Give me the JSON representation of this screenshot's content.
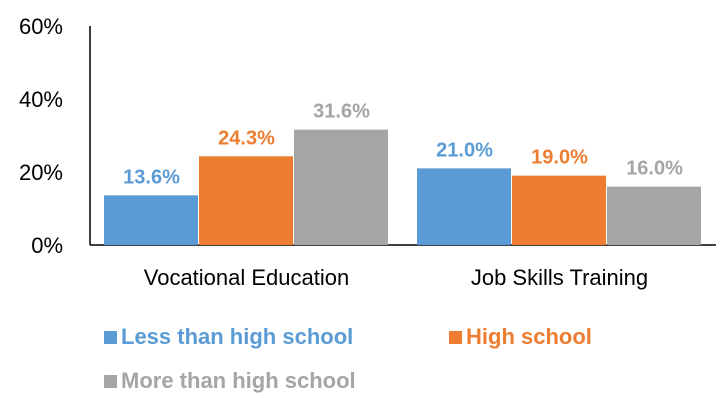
{
  "chart_data": {
    "type": "bar",
    "title": "",
    "xlabel": "",
    "ylabel": "",
    "ylim": [
      0,
      60
    ],
    "yticks": [
      "0%",
      "20%",
      "40%",
      "60%"
    ],
    "categories": [
      "Vocational Education",
      "Job Skills Training"
    ],
    "series": [
      {
        "name": "Less than high school",
        "values": [
          13.6,
          21.0
        ],
        "labels": [
          "13.6%",
          "21.0%"
        ],
        "color": "#5B9BD5"
      },
      {
        "name": "High school",
        "values": [
          24.3,
          19.0
        ],
        "labels": [
          "24.3%",
          "19.0%"
        ],
        "color": "#ED7D31"
      },
      {
        "name": "More than high school",
        "values": [
          31.6,
          16.0
        ],
        "labels": [
          "31.6%",
          "16.0%"
        ],
        "color": "#A5A5A5"
      }
    ],
    "grid": false,
    "legend_position": "bottom"
  }
}
